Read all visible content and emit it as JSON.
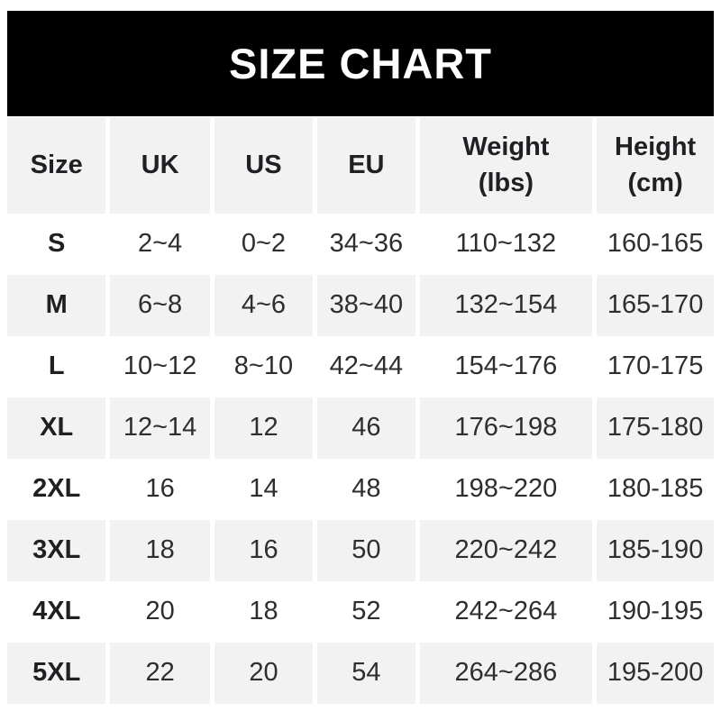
{
  "title": "SIZE CHART",
  "colors": {
    "banner_bg": "#000000",
    "banner_text": "#ffffff",
    "row_alt_bg": "#f2f2f2",
    "row_bg": "#ffffff",
    "header_text": "#1f2023",
    "body_text": "#2e2e30"
  },
  "chart_data": {
    "type": "table",
    "title": "SIZE CHART",
    "legend_position": "none",
    "columns": [
      {
        "key": "size",
        "label": "Size"
      },
      {
        "key": "uk",
        "label": "UK"
      },
      {
        "key": "us",
        "label": "US"
      },
      {
        "key": "eu",
        "label": "EU"
      },
      {
        "key": "weight",
        "label": "Weight",
        "sub": "(lbs)"
      },
      {
        "key": "height",
        "label": "Height",
        "sub": "(cm)"
      }
    ],
    "rows": [
      {
        "size": "S",
        "uk": "2~4",
        "us": "0~2",
        "eu": "34~36",
        "weight": "110~132",
        "height": "160-165"
      },
      {
        "size": "M",
        "uk": "6~8",
        "us": "4~6",
        "eu": "38~40",
        "weight": "132~154",
        "height": "165-170"
      },
      {
        "size": "L",
        "uk": "10~12",
        "us": "8~10",
        "eu": "42~44",
        "weight": "154~176",
        "height": "170-175"
      },
      {
        "size": "XL",
        "uk": "12~14",
        "us": "12",
        "eu": "46",
        "weight": "176~198",
        "height": "175-180"
      },
      {
        "size": "2XL",
        "uk": "16",
        "us": "14",
        "eu": "48",
        "weight": "198~220",
        "height": "180-185"
      },
      {
        "size": "3XL",
        "uk": "18",
        "us": "16",
        "eu": "50",
        "weight": "220~242",
        "height": "185-190"
      },
      {
        "size": "4XL",
        "uk": "20",
        "us": "18",
        "eu": "52",
        "weight": "242~264",
        "height": "190-195"
      },
      {
        "size": "5XL",
        "uk": "22",
        "us": "20",
        "eu": "54",
        "weight": "264~286",
        "height": "195-200"
      }
    ]
  }
}
